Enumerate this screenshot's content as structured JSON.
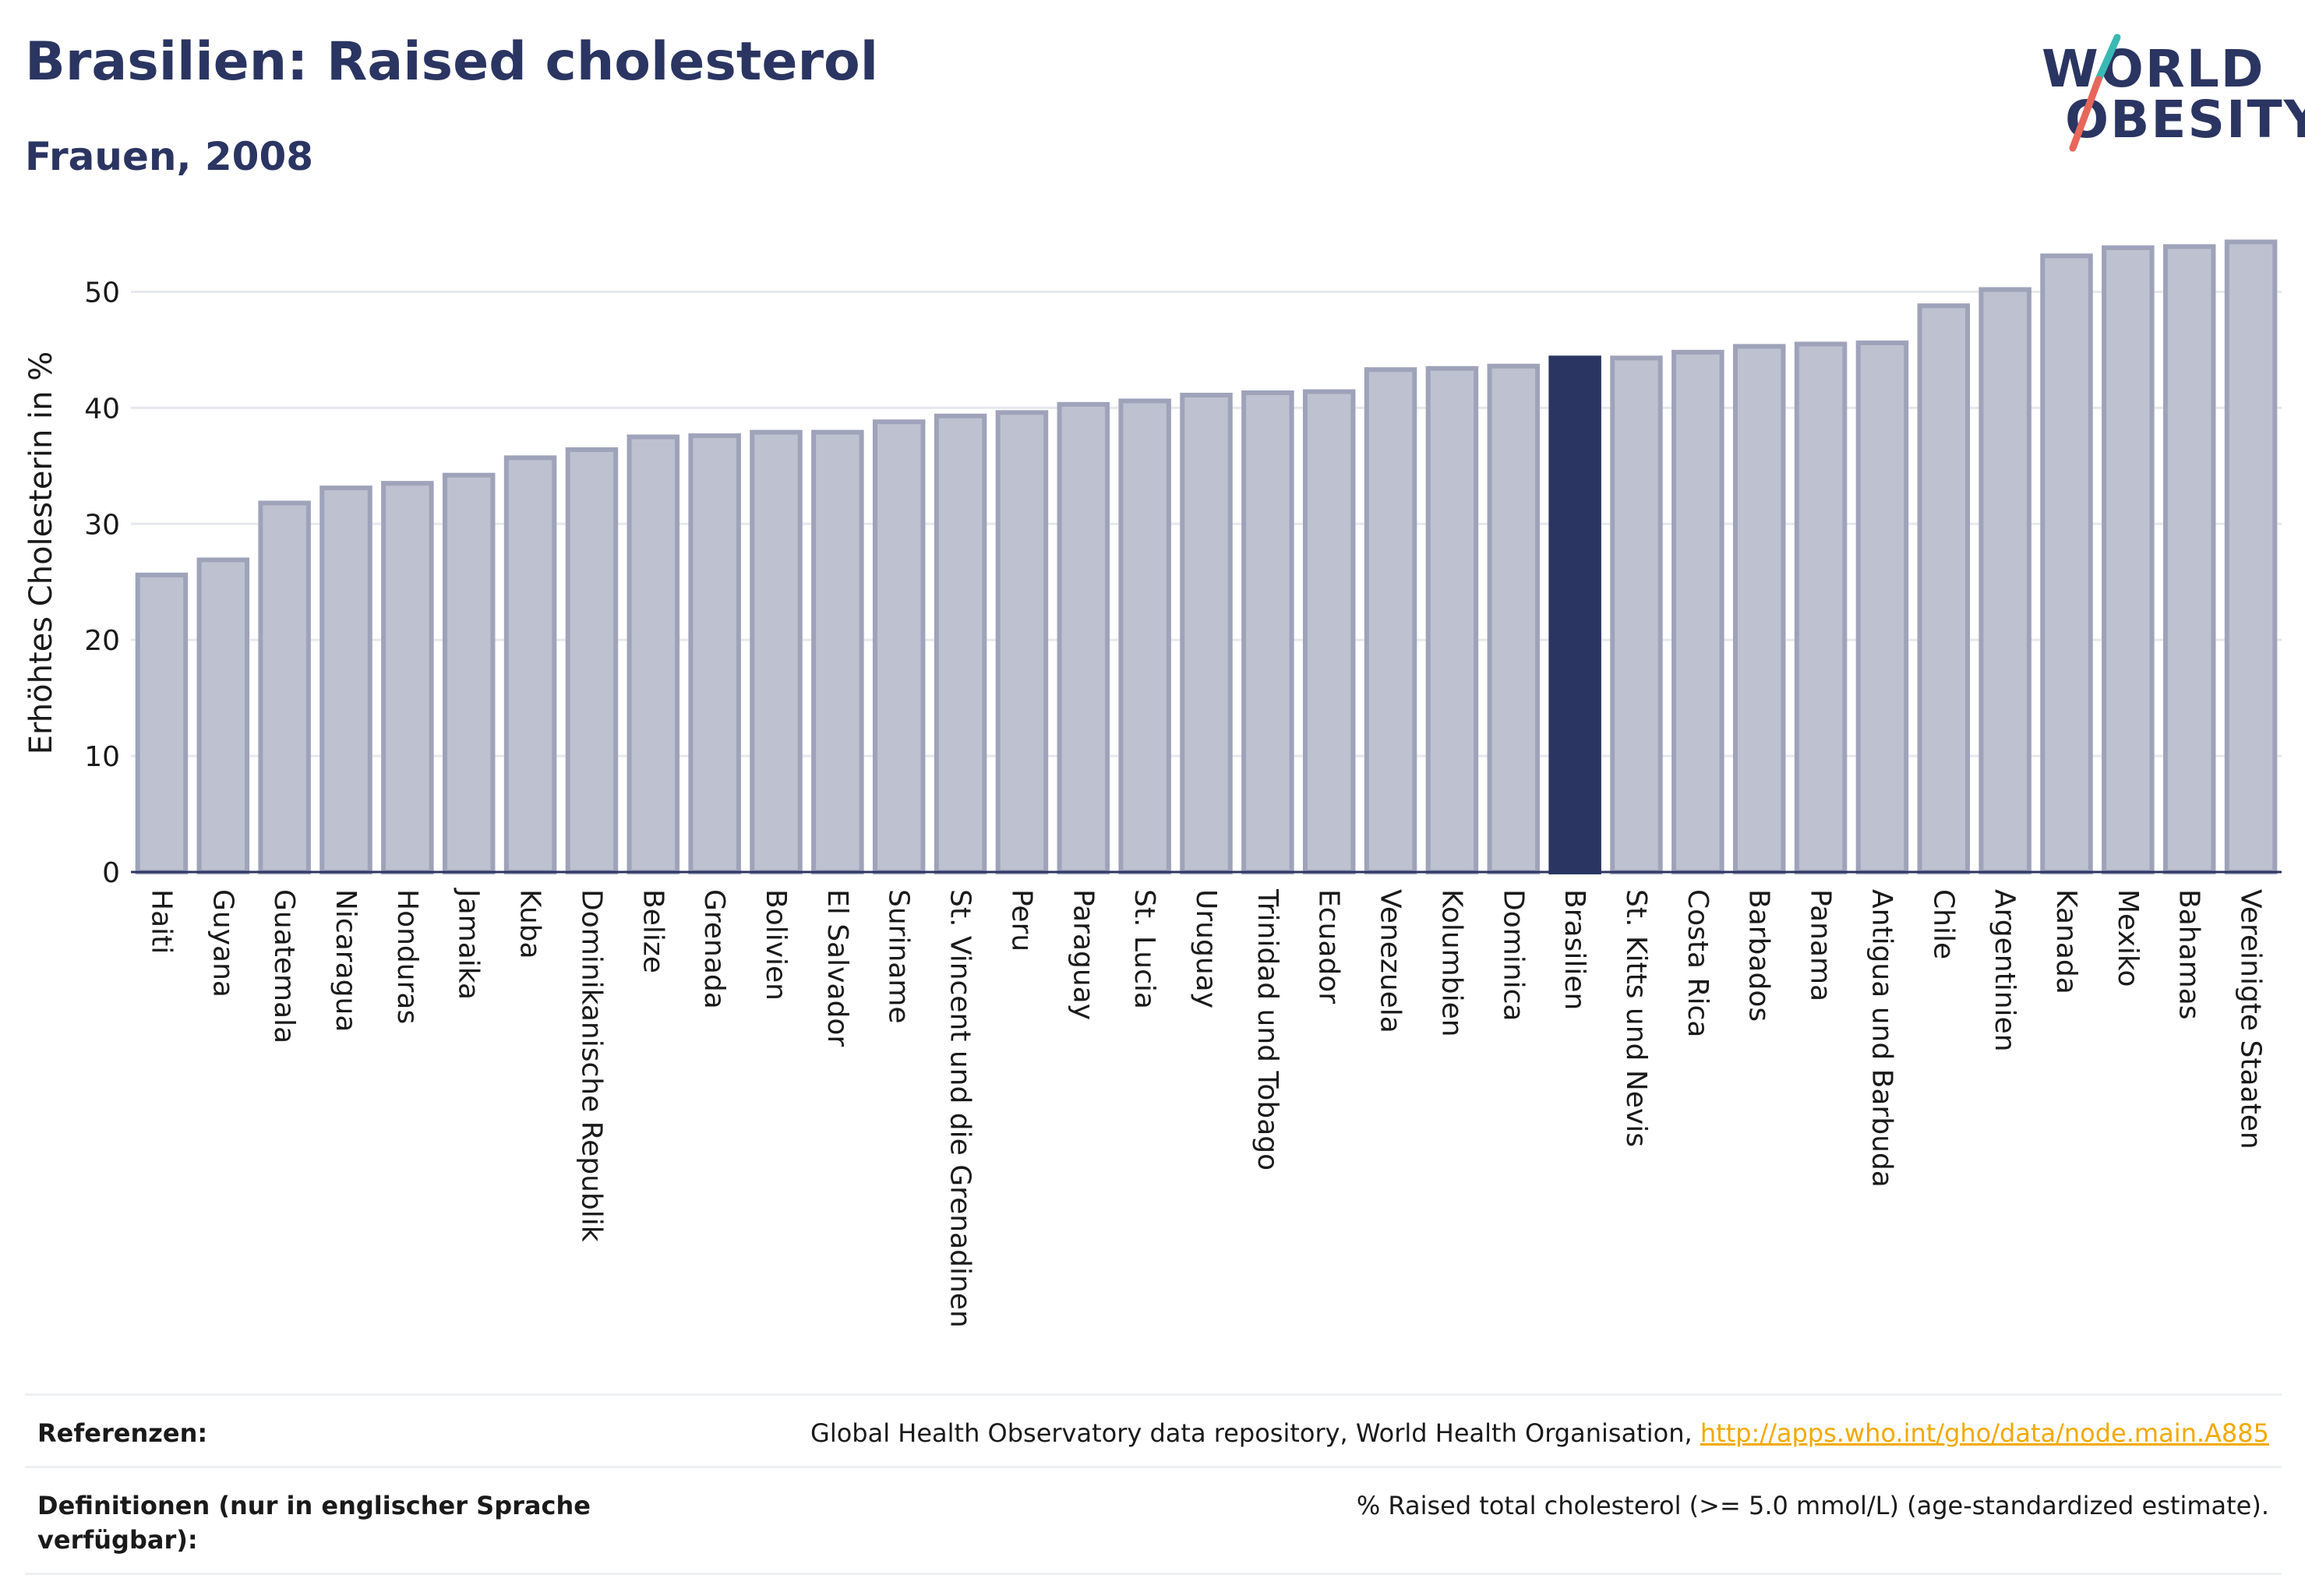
{
  "header": {
    "title": "Brasilien: Raised cholesterol",
    "subtitle": "Frauen, 2008"
  },
  "logo": {
    "line1": "WORLD",
    "line2": "OBESITY",
    "slash_colors": [
      "#39b9b4",
      "#e8665a"
    ]
  },
  "colors": {
    "bar": "#bec1cf",
    "bar_border": "#9ea3ba",
    "highlight": "#2b3562",
    "grid": "#e6e8ee",
    "axis": "#2b3562",
    "link": "#f2a900"
  },
  "chart_data": {
    "type": "bar",
    "title": "Brasilien: Raised cholesterol",
    "subtitle": "Frauen, 2008",
    "xlabel": "",
    "ylabel": "Erhöhtes Cholesterin in %",
    "ylim": [
      0,
      55
    ],
    "yticks": [
      0,
      10,
      20,
      30,
      40,
      50
    ],
    "grid": true,
    "highlight": "Brasilien",
    "categories": [
      "Haiti",
      "Guyana",
      "Guatemala",
      "Nicaragua",
      "Honduras",
      "Jamaika",
      "Kuba",
      "Dominikanische Republik",
      "Belize",
      "Grenada",
      "Bolivien",
      "El Salvador",
      "Suriname",
      "St. Vincent und die Grenadinen",
      "Peru",
      "Paraguay",
      "St. Lucia",
      "Uruguay",
      "Trinidad und Tobago",
      "Ecuador",
      "Venezuela",
      "Kolumbien",
      "Dominica",
      "Brasilien",
      "St. Kitts und Nevis",
      "Costa Rica",
      "Barbados",
      "Panama",
      "Antigua und Barbuda",
      "Chile",
      "Argentinien",
      "Kanada",
      "Mexiko",
      "Bahamas",
      "Vereinigte Staaten"
    ],
    "values": [
      25.6,
      26.9,
      31.8,
      33.1,
      33.5,
      34.2,
      35.7,
      36.4,
      37.5,
      37.6,
      37.9,
      37.9,
      38.8,
      39.3,
      39.6,
      40.3,
      40.6,
      41.1,
      41.3,
      41.4,
      43.3,
      43.4,
      43.6,
      44.3,
      44.3,
      44.8,
      45.3,
      45.5,
      45.6,
      48.8,
      50.2,
      53.1,
      53.8,
      53.9,
      54.3
    ]
  },
  "references": {
    "ref_label": "Referenzen:",
    "ref_text": "Global Health Observatory data repository, World Health Organisation, ",
    "ref_link": "http://apps.who.int/gho/data/node.main.A885",
    "def_label": "Definitionen (nur in englischer Sprache verfügbar):",
    "def_text": "% Raised total cholesterol (>= 5.0 mmol/L) (age-standardized estimate)."
  }
}
